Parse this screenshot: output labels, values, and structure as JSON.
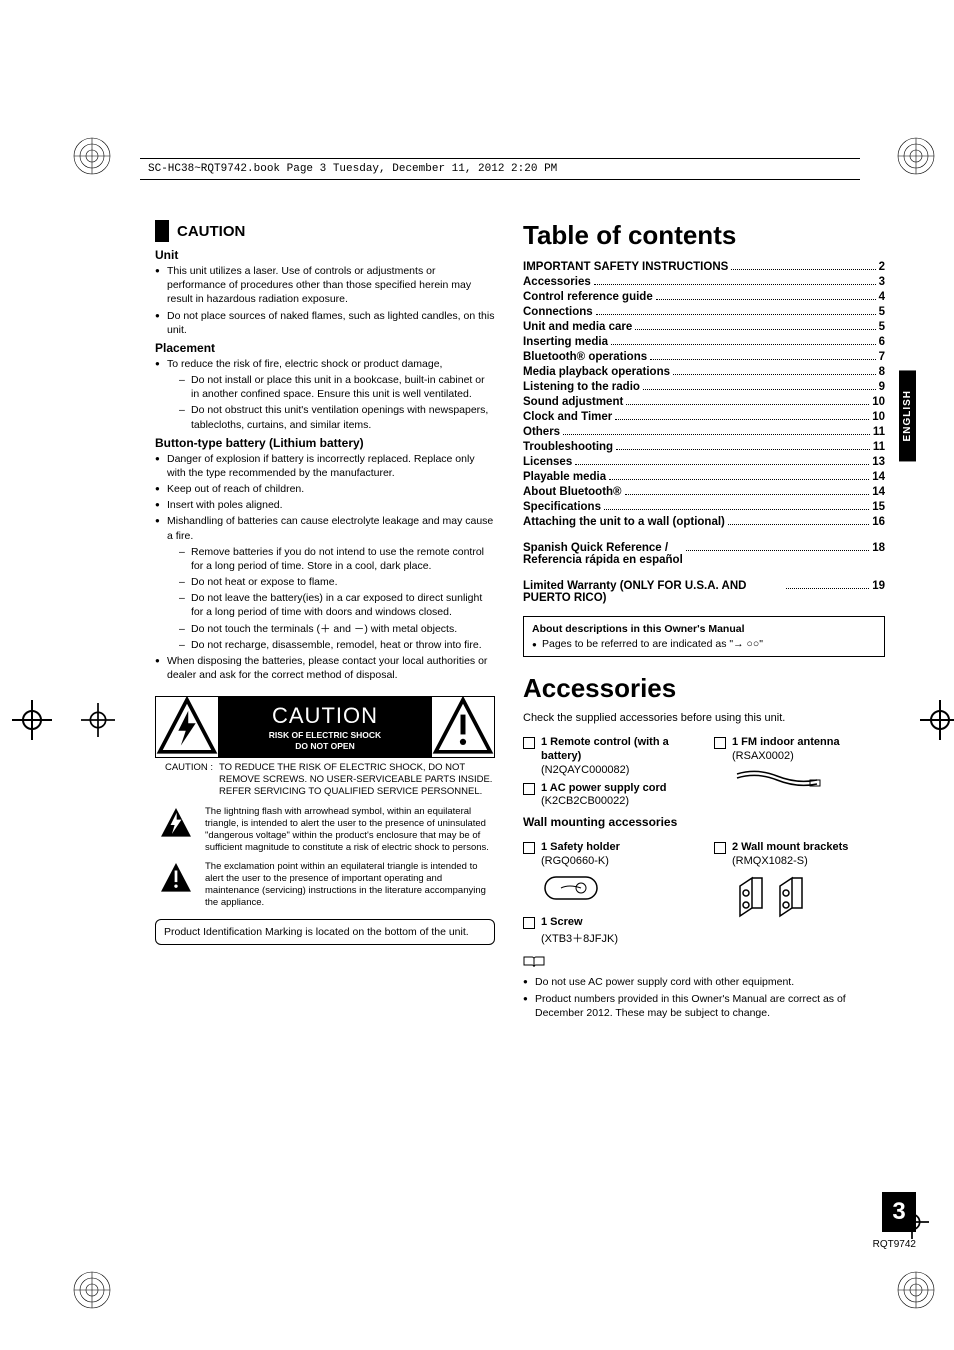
{
  "header": {
    "text": "SC-HC38~RQT9742.book  Page 3  Tuesday, December 11, 2012  2:20 PM"
  },
  "sideTab": "ENGLISH",
  "pageNumber": "3",
  "docNumber": "RQT9742",
  "caution": {
    "title": "CAUTION",
    "unit": {
      "heading": "Unit",
      "items": [
        "This unit utilizes a laser. Use of controls or adjustments or performance of procedures other than those specified herein may result in hazardous radiation exposure.",
        "Do not place sources of naked flames, such as lighted candles, on this unit."
      ]
    },
    "placement": {
      "heading": "Placement",
      "intro": "To reduce the risk of fire, electric shock or product damage,",
      "sub": [
        "Do not install or place this unit in a bookcase, built-in cabinet or in another confined space. Ensure this unit is well ventilated.",
        "Do not obstruct this unit's ventilation openings with newspapers, tablecloths, curtains, and similar items."
      ]
    },
    "battery": {
      "heading": "Button-type battery (Lithium battery)",
      "items": [
        "Danger of explosion if battery is incorrectly replaced. Replace only with the type recommended by the manufacturer.",
        "Keep out of reach of children.",
        "Insert with poles aligned.",
        "Mishandling of batteries can cause electrolyte leakage and may cause a fire."
      ],
      "sub": [
        "Remove batteries if you do not intend to use the remote control for a long period of time. Store in a cool, dark place.",
        "Do not heat or expose to flame.",
        "Do not leave the battery(ies) in a car exposed to direct sunlight for a long period of time with doors and windows closed.",
        "Do not touch the terminals (＋ and －) with metal objects.",
        "Do not recharge, disassemble, remodel, heat or throw into fire."
      ],
      "tail": "When disposing the batteries, please contact your local authorities or dealer and ask for the correct method of disposal."
    },
    "warningBox": {
      "big": "CAUTION",
      "line1": "RISK OF ELECTRIC SHOCK",
      "line2": "DO NOT OPEN"
    },
    "cautionText": {
      "label": "CAUTION :",
      "body": "TO REDUCE THE RISK OF ELECTRIC SHOCK, DO NOT REMOVE SCREWS. NO USER-SERVICEABLE PARTS INSIDE.\nREFER SERVICING TO QUALIFIED SERVICE PERSONNEL."
    },
    "boltText": "The lightning flash with arrowhead symbol, within an equilateral triangle, is intended to alert the user to the presence of uninsulated \"dangerous voltage\" within the product's enclosure that may be of sufficient magnitude to constitute a risk of electric shock to persons.",
    "excText": "The exclamation point within an equilateral triangle is intended to alert the user to the presence of important operating and maintenance (servicing) instructions in the literature accompanying the appliance.",
    "pidBox": "Product Identification Marking is located on the bottom of the unit."
  },
  "toc": {
    "title": "Table of contents",
    "entries": [
      {
        "label": "IMPORTANT SAFETY INSTRUCTIONS",
        "page": "2"
      },
      {
        "label": "Accessories",
        "page": "3"
      },
      {
        "label": "Control reference guide",
        "page": "4"
      },
      {
        "label": "Connections",
        "page": "5"
      },
      {
        "label": "Unit and media care",
        "page": "5"
      },
      {
        "label": "Inserting media",
        "page": "6"
      },
      {
        "label": "Bluetooth® operations",
        "page": "7"
      },
      {
        "label": "Media playback operations",
        "page": "8"
      },
      {
        "label": "Listening to the radio",
        "page": "9"
      },
      {
        "label": "Sound adjustment",
        "page": "10"
      },
      {
        "label": "Clock and Timer",
        "page": "10"
      },
      {
        "label": "Others",
        "page": "11"
      },
      {
        "label": "Troubleshooting",
        "page": "11"
      },
      {
        "label": "Licenses",
        "page": "13"
      },
      {
        "label": "Playable media",
        "page": "14"
      },
      {
        "label": "About Bluetooth®",
        "page": "14"
      },
      {
        "label": "Specifications",
        "page": "15"
      },
      {
        "label": "Attaching the unit to a wall (optional)",
        "page": "16"
      }
    ],
    "extra1": {
      "label": "Spanish Quick Reference /\nReferencia rápida en español",
      "page": "18"
    },
    "extra2": {
      "label": "Limited Warranty (ONLY FOR U.S.A. AND PUERTO RICO)",
      "page": "19"
    }
  },
  "noteBox": {
    "title": "About descriptions in this Owner's Manual",
    "body": "Pages to be referred to are indicated as \"→ ○○\""
  },
  "accessories": {
    "title": "Accessories",
    "intro": "Check the supplied accessories before using this unit.",
    "left": [
      {
        "qty": "1",
        "name": "Remote control (with a battery)",
        "code": "(N2QAYC000082)"
      },
      {
        "qty": "1",
        "name": "AC power supply cord",
        "code": "(K2CB2CB00022)"
      }
    ],
    "right": [
      {
        "qty": "1",
        "name": "FM indoor antenna",
        "code": "(RSAX0002)"
      }
    ],
    "wall": {
      "heading": "Wall mounting accessories",
      "left": [
        {
          "qty": "1",
          "name": "Safety holder",
          "code": "(RGQ0660-K)"
        },
        {
          "qty": "1",
          "name": "Screw",
          "code": "(XTB3＋8JFJK)"
        }
      ],
      "right": [
        {
          "qty": "2",
          "name": "Wall mount brackets",
          "code": "(RMQX1082-S)"
        }
      ]
    },
    "notes": [
      "Do not use AC power supply cord with other equipment.",
      "Product numbers provided in this Owner's Manual are correct as of December 2012. These may be subject to change."
    ]
  }
}
